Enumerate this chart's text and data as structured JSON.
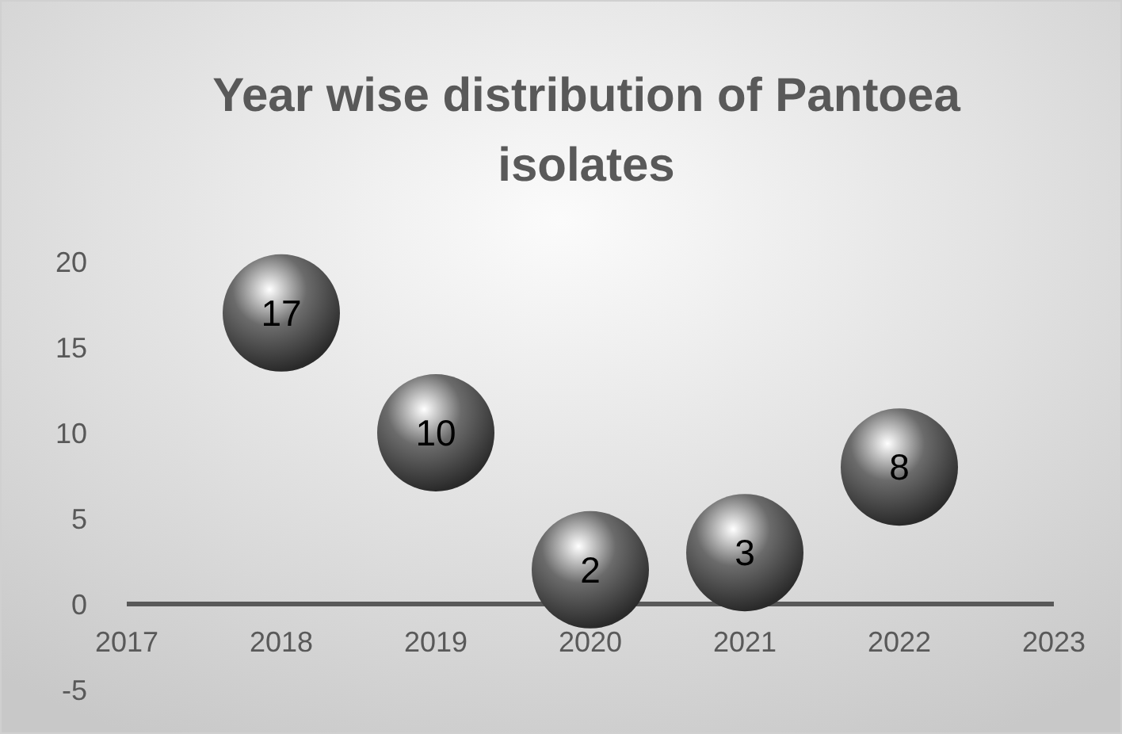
{
  "chart_data": {
    "type": "scatter",
    "title": "Year wise distribution of Pantoea isolates",
    "x": [
      2018,
      2019,
      2020,
      2021,
      2022
    ],
    "series": [
      {
        "color": "#6b6b6b",
        "values": [
          17,
          10,
          2,
          3,
          8
        ]
      }
    ],
    "xlim": [
      2017,
      2023
    ],
    "xticks": [
      2017,
      2018,
      2019,
      2020,
      2021,
      2022,
      2023
    ],
    "ylim": [
      -5,
      20
    ],
    "yticks": [
      -5,
      0,
      5,
      10,
      15,
      20
    ],
    "data_labels": true,
    "marker": "circle"
  }
}
